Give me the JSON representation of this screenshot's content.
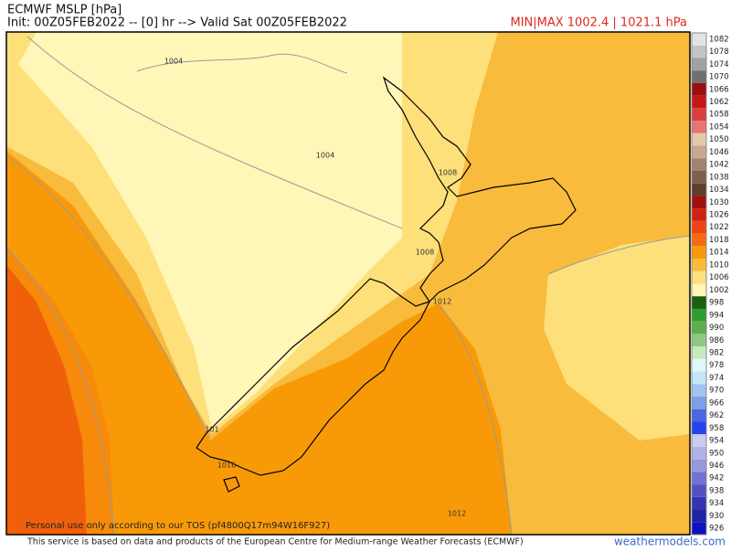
{
  "header": {
    "title": "ECMWF MSLP [hPa]",
    "init": "Init: 00Z05FEB2022 -- [0] hr --> Valid Sat 00Z05FEB2022",
    "minmax": "MIN|MAX 1002.4 | 1021.1 hPa"
  },
  "map": {
    "contour_labels": [
      "1004",
      "1004",
      "1008",
      "1008",
      "1012",
      "101",
      "1016",
      "1012"
    ],
    "watermark": "Personal use only according to our TOS (pf4800Q17m94W16F927)"
  },
  "colorbar": {
    "levels": [
      {
        "value": 1082,
        "color": "#e4e4e4"
      },
      {
        "value": 1078,
        "color": "#c4c4c4"
      },
      {
        "value": 1074,
        "color": "#a2a2a2"
      },
      {
        "value": 1070,
        "color": "#707070"
      },
      {
        "value": 1066,
        "color": "#9e0e0e"
      },
      {
        "value": 1062,
        "color": "#c41818"
      },
      {
        "value": 1058,
        "color": "#d84040"
      },
      {
        "value": 1054,
        "color": "#e87474"
      },
      {
        "value": 1050,
        "color": "#e2caa8"
      },
      {
        "value": 1046,
        "color": "#c8a88e"
      },
      {
        "value": 1042,
        "color": "#a28270"
      },
      {
        "value": 1038,
        "color": "#7e5e4c"
      },
      {
        "value": 1034,
        "color": "#5e3e2c"
      },
      {
        "value": 1030,
        "color": "#a01010"
      },
      {
        "value": 1026,
        "color": "#d02212"
      },
      {
        "value": 1022,
        "color": "#f04412"
      },
      {
        "value": 1018,
        "color": "#f86a10"
      },
      {
        "value": 1014,
        "color": "#f89a08"
      },
      {
        "value": 1010,
        "color": "#f9bb3c"
      },
      {
        "value": 1006,
        "color": "#fde07a"
      },
      {
        "value": 1002,
        "color": "#fff6b8"
      },
      {
        "value": 998,
        "color": "#1e5e10"
      },
      {
        "value": 994,
        "color": "#2e9e2e"
      },
      {
        "value": 990,
        "color": "#5eae50"
      },
      {
        "value": 986,
        "color": "#8ec880"
      },
      {
        "value": 982,
        "color": "#c8e8c0"
      },
      {
        "value": 978,
        "color": "#e0f8f8"
      },
      {
        "value": 974,
        "color": "#c0e6f8"
      },
      {
        "value": 970,
        "color": "#a0c4f0"
      },
      {
        "value": 966,
        "color": "#7e9ee8"
      },
      {
        "value": 962,
        "color": "#4a66e0"
      },
      {
        "value": 958,
        "color": "#2444ee"
      },
      {
        "value": 954,
        "color": "#cacaf2"
      },
      {
        "value": 950,
        "color": "#b2b2ea"
      },
      {
        "value": 946,
        "color": "#9898e0"
      },
      {
        "value": 942,
        "color": "#7272d2"
      },
      {
        "value": 938,
        "color": "#5252c2"
      },
      {
        "value": 934,
        "color": "#3434b2"
      },
      {
        "value": 930,
        "color": "#2222a4"
      },
      {
        "value": 926,
        "color": "#1010c0"
      }
    ]
  },
  "footer": {
    "notice": "This service is based on data and products of the European Centre for Medium-range Weather Forecasts (ECMWF)",
    "site": "weathermodels.com"
  }
}
